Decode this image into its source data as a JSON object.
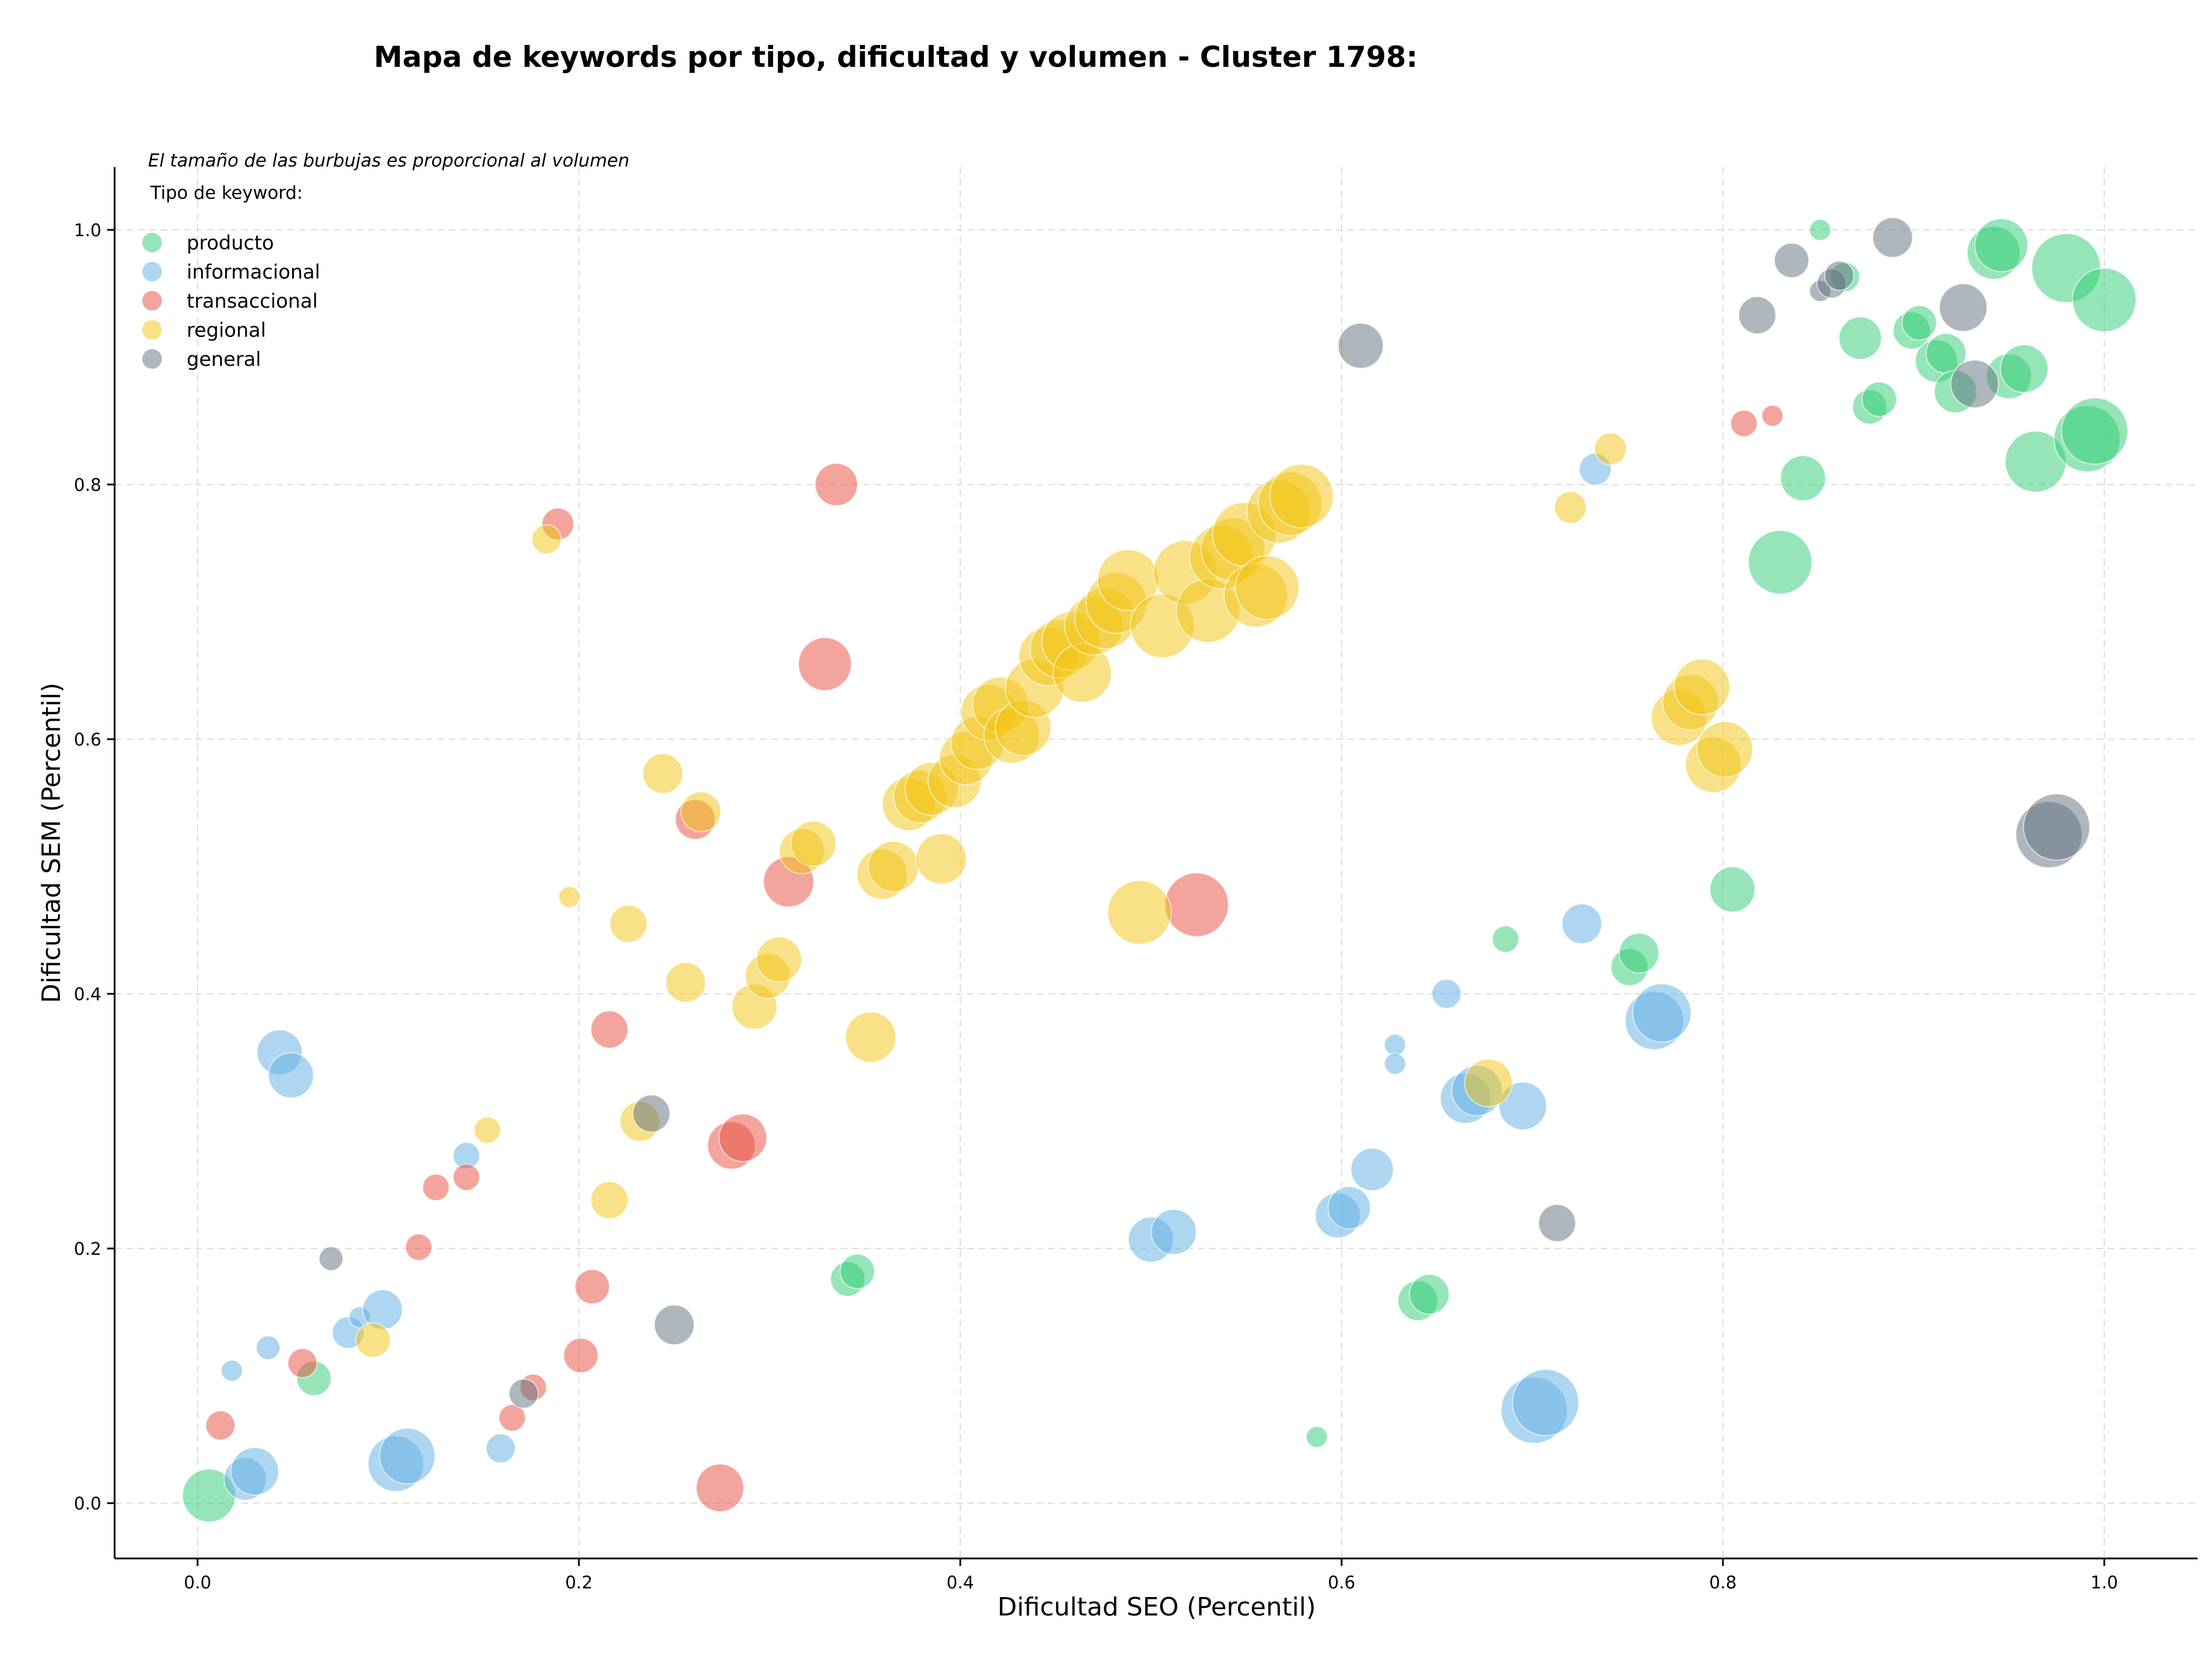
{
  "chart_data": {
    "type": "scatter",
    "title": "Mapa de keywords por tipo, dificultad y volumen - Cluster 1798:",
    "xlabel": "Dificultad SEO (Percentil)",
    "ylabel": "Dificultad SEM (Percentil)",
    "xlim": [
      -0.043,
      1.05
    ],
    "ylim": [
      -0.043,
      1.05
    ],
    "xticks": [
      "0.0",
      "0.2",
      "0.4",
      "0.6",
      "0.8",
      "1.0"
    ],
    "yticks": [
      "0.0",
      "0.2",
      "0.4",
      "0.6",
      "0.8",
      "1.0"
    ],
    "grid": true,
    "legend_placement": "top-left",
    "annotation": "El tamaño de las burbujas es proporcional al volumen",
    "legend_title": "Tipo de keyword:",
    "series": [
      {
        "name": "producto",
        "color": "#2ecc71",
        "points": [
          [
            0.006,
            0.006,
            2
          ],
          [
            0.061,
            0.098,
            1.3
          ],
          [
            0.341,
            0.176,
            1.3
          ],
          [
            0.346,
            0.182,
            1.3
          ],
          [
            0.587,
            0.052,
            0.8
          ],
          [
            0.64,
            0.159,
            1.5
          ],
          [
            0.646,
            0.164,
            1.5
          ],
          [
            0.686,
            0.443,
            1.0
          ],
          [
            0.751,
            0.421,
            1.4
          ],
          [
            0.756,
            0.432,
            1.5
          ],
          [
            0.805,
            0.482,
            1.7
          ],
          [
            0.83,
            0.739,
            2.4
          ],
          [
            0.842,
            0.805,
            1.7
          ],
          [
            0.851,
            1.0,
            0.8
          ],
          [
            0.864,
            0.963,
            1.1
          ],
          [
            0.872,
            0.915,
            1.6
          ],
          [
            0.877,
            0.861,
            1.3
          ],
          [
            0.882,
            0.867,
            1.3
          ],
          [
            0.899,
            0.921,
            1.4
          ],
          [
            0.903,
            0.927,
            1.3
          ],
          [
            0.912,
            0.897,
            1.6
          ],
          [
            0.917,
            0.903,
            1.5
          ],
          [
            0.922,
            0.873,
            1.6
          ],
          [
            0.942,
            0.982,
            2.0
          ],
          [
            0.946,
            0.988,
            2.0
          ],
          [
            0.95,
            0.885,
            1.7
          ],
          [
            0.958,
            0.891,
            1.8
          ],
          [
            0.964,
            0.818,
            2.3
          ],
          [
            0.98,
            0.97,
            2.6
          ],
          [
            0.991,
            0.836,
            2.5
          ],
          [
            0.995,
            0.842,
            2.5
          ],
          [
            1.0,
            0.945,
            2.4
          ]
        ]
      },
      {
        "name": "informacional",
        "color": "#5dade2",
        "points": [
          [
            0.018,
            0.104,
            0.8
          ],
          [
            0.025,
            0.019,
            1.6
          ],
          [
            0.03,
            0.025,
            1.8
          ],
          [
            0.037,
            0.122,
            0.9
          ],
          [
            0.043,
            0.354,
            1.7
          ],
          [
            0.049,
            0.336,
            1.7
          ],
          [
            0.079,
            0.134,
            1.2
          ],
          [
            0.085,
            0.146,
            0.8
          ],
          [
            0.097,
            0.152,
            1.5
          ],
          [
            0.104,
            0.031,
            2.1
          ],
          [
            0.11,
            0.037,
            2.1
          ],
          [
            0.141,
            0.273,
            1.0
          ],
          [
            0.159,
            0.043,
            1.1
          ],
          [
            0.628,
            0.36,
            0.8
          ],
          [
            0.628,
            0.345,
            0.8
          ],
          [
            0.655,
            0.4,
            1.1
          ],
          [
            0.598,
            0.226,
            1.7
          ],
          [
            0.604,
            0.232,
            1.6
          ],
          [
            0.616,
            0.262,
            1.6
          ],
          [
            0.5,
            0.207,
            1.7
          ],
          [
            0.512,
            0.213,
            1.7
          ],
          [
            0.665,
            0.318,
            1.9
          ],
          [
            0.671,
            0.324,
            1.9
          ],
          [
            0.695,
            0.312,
            1.8
          ],
          [
            0.726,
            0.455,
            1.5
          ],
          [
            0.733,
            0.812,
            1.2
          ],
          [
            0.701,
            0.073,
            2.5
          ],
          [
            0.707,
            0.079,
            2.5
          ],
          [
            0.764,
            0.379,
            2.2
          ],
          [
            0.768,
            0.385,
            2.2
          ]
        ]
      },
      {
        "name": "transaccional",
        "color": "#e74c3c",
        "points": [
          [
            0.012,
            0.061,
            1.1
          ],
          [
            0.055,
            0.11,
            1.1
          ],
          [
            0.116,
            0.201,
            1.0
          ],
          [
            0.125,
            0.248,
            1.0
          ],
          [
            0.141,
            0.256,
            1.0
          ],
          [
            0.165,
            0.067,
            1.0
          ],
          [
            0.176,
            0.091,
            1.0
          ],
          [
            0.189,
            0.769,
            1.2
          ],
          [
            0.201,
            0.116,
            1.3
          ],
          [
            0.207,
            0.17,
            1.3
          ],
          [
            0.216,
            0.372,
            1.4
          ],
          [
            0.261,
            0.537,
            1.5
          ],
          [
            0.274,
            0.012,
            1.8
          ],
          [
            0.28,
            0.281,
            1.8
          ],
          [
            0.286,
            0.287,
            1.8
          ],
          [
            0.31,
            0.488,
            1.9
          ],
          [
            0.329,
            0.659,
            2.0
          ],
          [
            0.335,
            0.8,
            1.6
          ],
          [
            0.826,
            0.854,
            0.8
          ],
          [
            0.811,
            0.848,
            1.0
          ],
          [
            0.524,
            0.47,
            2.4
          ]
        ]
      },
      {
        "name": "regional",
        "color": "#f1c40f",
        "points": [
          [
            0.092,
            0.128,
            1.3
          ],
          [
            0.152,
            0.293,
            1.0
          ],
          [
            0.183,
            0.757,
            1.1
          ],
          [
            0.195,
            0.476,
            0.8
          ],
          [
            0.216,
            0.238,
            1.4
          ],
          [
            0.226,
            0.455,
            1.4
          ],
          [
            0.232,
            0.3,
            1.5
          ],
          [
            0.244,
            0.573,
            1.5
          ],
          [
            0.256,
            0.409,
            1.5
          ],
          [
            0.264,
            0.543,
            1.5
          ],
          [
            0.292,
            0.39,
            1.7
          ],
          [
            0.299,
            0.414,
            1.7
          ],
          [
            0.305,
            0.427,
            1.7
          ],
          [
            0.317,
            0.512,
            1.7
          ],
          [
            0.323,
            0.518,
            1.7
          ],
          [
            0.353,
            0.366,
            1.9
          ],
          [
            0.359,
            0.494,
            1.9
          ],
          [
            0.365,
            0.5,
            1.9
          ],
          [
            0.39,
            0.506,
            1.9
          ],
          [
            0.373,
            0.549,
            2.0
          ],
          [
            0.379,
            0.555,
            2.0
          ],
          [
            0.385,
            0.561,
            2.0
          ],
          [
            0.397,
            0.567,
            2.0
          ],
          [
            0.403,
            0.585,
            2.0
          ],
          [
            0.409,
            0.597,
            2.0
          ],
          [
            0.415,
            0.621,
            2.1
          ],
          [
            0.421,
            0.627,
            2.1
          ],
          [
            0.427,
            0.603,
            2.1
          ],
          [
            0.433,
            0.609,
            2.1
          ],
          [
            0.439,
            0.64,
            2.2
          ],
          [
            0.446,
            0.665,
            2.2
          ],
          [
            0.452,
            0.671,
            2.2
          ],
          [
            0.458,
            0.677,
            2.2
          ],
          [
            0.464,
            0.652,
            2.2
          ],
          [
            0.47,
            0.689,
            2.2
          ],
          [
            0.476,
            0.695,
            2.3
          ],
          [
            0.482,
            0.707,
            2.3
          ],
          [
            0.488,
            0.725,
            2.3
          ],
          [
            0.494,
            0.464,
            2.4
          ],
          [
            0.506,
            0.689,
            2.4
          ],
          [
            0.518,
            0.731,
            2.4
          ],
          [
            0.53,
            0.701,
            2.4
          ],
          [
            0.537,
            0.743,
            2.4
          ],
          [
            0.543,
            0.749,
            2.4
          ],
          [
            0.549,
            0.761,
            2.4
          ],
          [
            0.555,
            0.713,
            2.4
          ],
          [
            0.561,
            0.719,
            2.4
          ],
          [
            0.567,
            0.779,
            2.4
          ],
          [
            0.573,
            0.785,
            2.4
          ],
          [
            0.579,
            0.791,
            2.4
          ],
          [
            0.677,
            0.33,
            1.8
          ],
          [
            0.72,
            0.782,
            1.2
          ],
          [
            0.741,
            0.828,
            1.2
          ],
          [
            0.777,
            0.617,
            2.1
          ],
          [
            0.783,
            0.629,
            2.1
          ],
          [
            0.789,
            0.641,
            2.1
          ],
          [
            0.795,
            0.58,
            2.1
          ],
          [
            0.801,
            0.592,
            2.1
          ]
        ]
      },
      {
        "name": "general",
        "color": "#5d6d7e",
        "points": [
          [
            0.07,
            0.192,
            0.9
          ],
          [
            0.171,
            0.086,
            1.1
          ],
          [
            0.238,
            0.306,
            1.4
          ],
          [
            0.25,
            0.14,
            1.5
          ],
          [
            0.61,
            0.909,
            1.7
          ],
          [
            0.713,
            0.22,
            1.4
          ],
          [
            0.818,
            0.933,
            1.4
          ],
          [
            0.836,
            0.976,
            1.3
          ],
          [
            0.851,
            0.952,
            0.8
          ],
          [
            0.857,
            0.958,
            1.1
          ],
          [
            0.861,
            0.964,
            1.1
          ],
          [
            0.889,
            0.994,
            1.5
          ],
          [
            0.926,
            0.939,
            1.8
          ],
          [
            0.932,
            0.879,
            1.8
          ],
          [
            0.971,
            0.525,
            2.5
          ],
          [
            0.975,
            0.531,
            2.5
          ]
        ]
      }
    ]
  }
}
